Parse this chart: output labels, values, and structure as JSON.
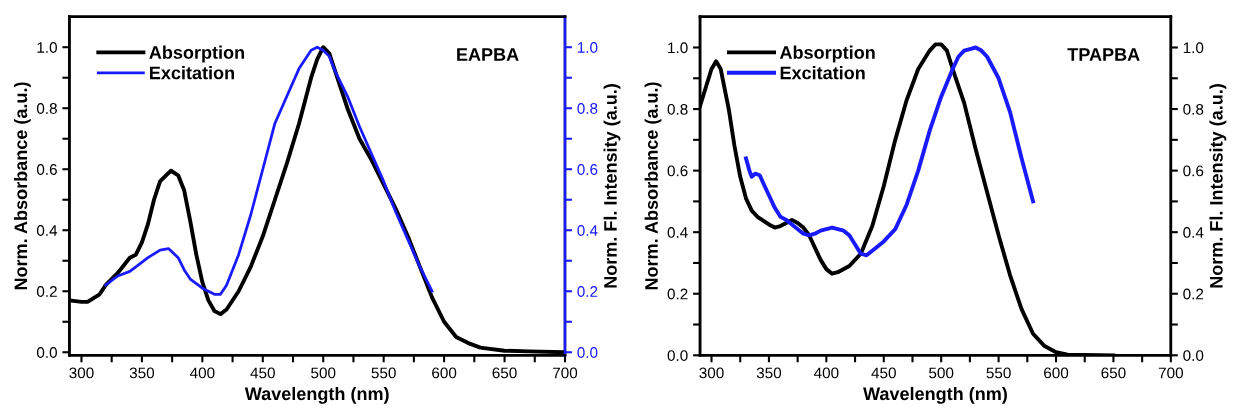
{
  "chart_data": [
    {
      "type": "line",
      "xlabel": "Wavelength (nm)",
      "ylabel": "Norm. Absorbance (a.u.)",
      "y2label": "Norm. Fl. Intensity (a.u.)",
      "annotations": [
        "EAPBA"
      ],
      "legend": "top left",
      "line_style": "solid",
      "marker": "none",
      "grid": false,
      "xlim": [
        290,
        700
      ],
      "xticks": [
        300,
        {
          "value": 325,
          "label": null
        },
        350,
        {
          "value": 375,
          "label": null
        },
        400,
        {
          "value": 425,
          "label": null
        },
        450,
        {
          "value": 475,
          "label": null
        },
        500,
        {
          "value": 525,
          "label": null
        },
        550,
        {
          "value": 575,
          "label": null
        },
        600,
        {
          "value": 625,
          "label": null
        },
        650,
        {
          "value": 675,
          "label": null
        },
        700
      ],
      "ylim": [
        -0.01,
        1.1
      ],
      "yticks": [
        {
          "value": 0,
          "label": "0.0"
        },
        {
          "value": 0.1,
          "label": null
        },
        0.2,
        {
          "value": 0.3,
          "label": null
        },
        0.4,
        {
          "value": 0.5,
          "label": null
        },
        0.6,
        {
          "value": 0.7,
          "label": null
        },
        0.8,
        {
          "value": 0.9,
          "label": null
        },
        {
          "value": 1,
          "label": "1.0"
        }
      ],
      "y2lim": [
        -0.01,
        1.1
      ],
      "y2ticks": [
        {
          "value": 0,
          "label": "0.0"
        },
        {
          "value": 0.1,
          "label": null
        },
        0.2,
        {
          "value": 0.3,
          "label": null
        },
        0.4,
        {
          "value": 0.5,
          "label": null
        },
        0.6,
        {
          "value": 0.7,
          "label": null
        },
        0.8,
        {
          "value": 0.9,
          "label": null
        },
        {
          "value": 1,
          "label": "1.0"
        }
      ],
      "series": [
        {
          "name": "Absorption",
          "color": "#000000",
          "x": [
            290,
            300,
            305,
            315,
            320,
            330,
            340,
            345,
            350,
            355,
            360,
            365,
            370,
            374,
            380,
            385,
            390,
            395,
            400,
            405,
            410,
            415,
            420,
            430,
            440,
            450,
            460,
            470,
            480,
            490,
            495,
            500,
            505,
            510,
            520,
            530,
            540,
            550,
            560,
            570,
            580,
            590,
            600,
            610,
            620,
            630,
            650,
            670,
            700
          ],
          "values": [
            0.17,
            0.165,
            0.165,
            0.19,
            0.22,
            0.26,
            0.31,
            0.32,
            0.36,
            0.42,
            0.5,
            0.56,
            0.58,
            0.595,
            0.58,
            0.53,
            0.43,
            0.32,
            0.23,
            0.17,
            0.135,
            0.125,
            0.14,
            0.2,
            0.28,
            0.38,
            0.5,
            0.62,
            0.75,
            0.9,
            0.96,
            1.0,
            0.98,
            0.92,
            0.8,
            0.7,
            0.63,
            0.55,
            0.47,
            0.38,
            0.28,
            0.18,
            0.1,
            0.05,
            0.03,
            0.015,
            0.005,
            0.003,
            0.0
          ]
        },
        {
          "name": "Excitation",
          "color": "#1a1aff",
          "axis": "y2",
          "x": [
            320,
            330,
            340,
            345,
            355,
            365,
            372,
            380,
            385,
            390,
            400,
            410,
            415,
            420,
            430,
            440,
            450,
            460,
            470,
            480,
            490,
            495,
            500,
            505,
            510,
            520,
            530,
            540,
            550,
            560,
            570,
            580,
            590
          ],
          "values": [
            0.22,
            0.25,
            0.265,
            0.28,
            0.31,
            0.335,
            0.34,
            0.31,
            0.27,
            0.24,
            0.21,
            0.19,
            0.19,
            0.22,
            0.32,
            0.45,
            0.6,
            0.75,
            0.84,
            0.93,
            0.99,
            1.0,
            0.99,
            0.97,
            0.92,
            0.84,
            0.74,
            0.65,
            0.56,
            0.46,
            0.37,
            0.28,
            0.2
          ]
        }
      ]
    },
    {
      "type": "line",
      "xlabel": "Wavelength (nm)",
      "ylabel": "Norm. Absorbance (a.u.)",
      "y2label": "Norm. Fl. Intensity (a.u.)",
      "annotations": [
        "TPAPBA"
      ],
      "legend": "top left",
      "line_style": "solid",
      "marker": "none",
      "grid": false,
      "xlim": [
        290,
        700
      ],
      "xticks": [
        300,
        {
          "value": 325,
          "label": null
        },
        350,
        {
          "value": 375,
          "label": null
        },
        400,
        {
          "value": 425,
          "label": null
        },
        450,
        {
          "value": 475,
          "label": null
        },
        500,
        {
          "value": 525,
          "label": null
        },
        550,
        {
          "value": 575,
          "label": null
        },
        600,
        {
          "value": 625,
          "label": null
        },
        650,
        {
          "value": 675,
          "label": null
        },
        700
      ],
      "ylim": [
        0,
        1.1
      ],
      "yticks": [
        {
          "value": 0,
          "label": "0.0"
        },
        {
          "value": 0.1,
          "label": null
        },
        0.2,
        {
          "value": 0.3,
          "label": null
        },
        0.4,
        {
          "value": 0.5,
          "label": null
        },
        0.6,
        {
          "value": 0.7,
          "label": null
        },
        0.8,
        {
          "value": 0.9,
          "label": null
        },
        {
          "value": 1,
          "label": "1.0"
        }
      ],
      "y2lim": [
        0,
        1.1
      ],
      "y2ticks": [
        {
          "value": 0,
          "label": "0.0"
        },
        {
          "value": 0.1,
          "label": null
        },
        0.2,
        {
          "value": 0.3,
          "label": null
        },
        0.4,
        {
          "value": 0.5,
          "label": null
        },
        0.6,
        {
          "value": 0.7,
          "label": null
        },
        0.8,
        {
          "value": 0.9,
          "label": null
        },
        {
          "value": 1,
          "label": "1.0"
        }
      ],
      "series": [
        {
          "name": "Absorption",
          "color": "#000000",
          "x": [
            290,
            295,
            300,
            304,
            308,
            315,
            320,
            325,
            330,
            335,
            340,
            350,
            355,
            360,
            365,
            370,
            375,
            380,
            385,
            390,
            395,
            400,
            405,
            410,
            420,
            430,
            440,
            450,
            460,
            470,
            480,
            490,
            495,
            500,
            505,
            510,
            520,
            530,
            540,
            550,
            560,
            570,
            580,
            590,
            600,
            610,
            650
          ],
          "values": [
            0.81,
            0.87,
            0.93,
            0.955,
            0.93,
            0.8,
            0.68,
            0.58,
            0.51,
            0.47,
            0.45,
            0.425,
            0.415,
            0.42,
            0.43,
            0.44,
            0.43,
            0.415,
            0.39,
            0.35,
            0.31,
            0.28,
            0.265,
            0.27,
            0.29,
            0.33,
            0.42,
            0.55,
            0.7,
            0.83,
            0.93,
            0.99,
            1.01,
            1.01,
            0.99,
            0.93,
            0.82,
            0.67,
            0.53,
            0.39,
            0.26,
            0.15,
            0.07,
            0.03,
            0.01,
            0.002,
            0.0
          ]
        },
        {
          "name": "Excitation",
          "color": "#1a1aff",
          "x": [
            330,
            333,
            335,
            338,
            342,
            345,
            350,
            355,
            360,
            365,
            370,
            380,
            385,
            390,
            395,
            400,
            405,
            410,
            415,
            420,
            425,
            430,
            435,
            440,
            450,
            460,
            470,
            480,
            490,
            500,
            510,
            515,
            520,
            525,
            530,
            535,
            540,
            550,
            560,
            570,
            580
          ],
          "values": [
            0.64,
            0.6,
            0.58,
            0.59,
            0.585,
            0.56,
            0.52,
            0.48,
            0.45,
            0.44,
            0.425,
            0.395,
            0.39,
            0.395,
            0.405,
            0.41,
            0.415,
            0.41,
            0.405,
            0.39,
            0.36,
            0.33,
            0.325,
            0.34,
            0.37,
            0.41,
            0.49,
            0.6,
            0.73,
            0.84,
            0.93,
            0.97,
            0.99,
            0.995,
            1.0,
            0.99,
            0.97,
            0.9,
            0.79,
            0.64,
            0.5
          ]
        }
      ]
    }
  ]
}
